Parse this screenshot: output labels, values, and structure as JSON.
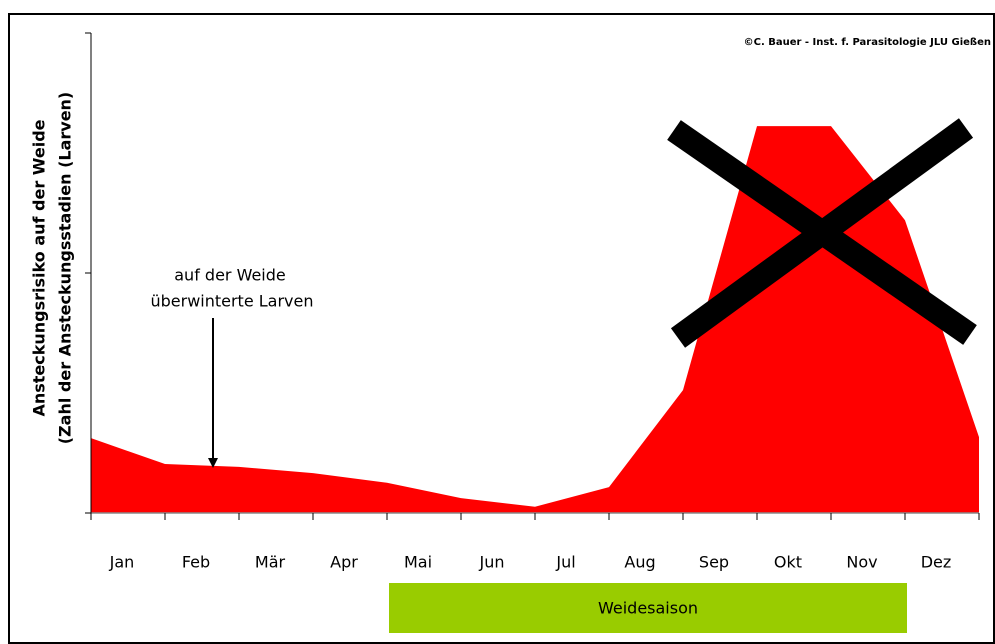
{
  "chart_data": {
    "type": "area",
    "y_label": [
      "Ansteckungsrisiko auf der Weide",
      "(Zahl der Ansteckungsstadien (Larven)"
    ],
    "copyright": "©C. Bauer - Inst. f. Parasitologie JLU Gießen",
    "annotation": [
      "auf der Weide",
      "überwinterte Larven"
    ],
    "season_label": "Weidesaison",
    "categories": [
      "Jan",
      "Feb",
      "Mär",
      "Apr",
      "Mai",
      "Jun",
      "Jul",
      "Aug",
      "Sep",
      "Okt",
      "Nov",
      "Dez"
    ],
    "x": [
      0,
      1,
      2,
      3,
      4,
      5,
      6,
      7,
      8,
      9,
      10,
      11,
      12
    ],
    "values": [
      15.6,
      10.2,
      9.6,
      8.3,
      6.3,
      3.1,
      1.3,
      5.4,
      25.6,
      80.6,
      80.6,
      61.0,
      15.8
    ],
    "color": "#ff0000",
    "xlim": [
      0,
      12
    ],
    "xticks": [
      0,
      1,
      2,
      3,
      4,
      5,
      6,
      7,
      8,
      9,
      10,
      11,
      12
    ],
    "ylim": [
      0,
      100
    ],
    "yticks": [
      0,
      50,
      100
    ]
  }
}
